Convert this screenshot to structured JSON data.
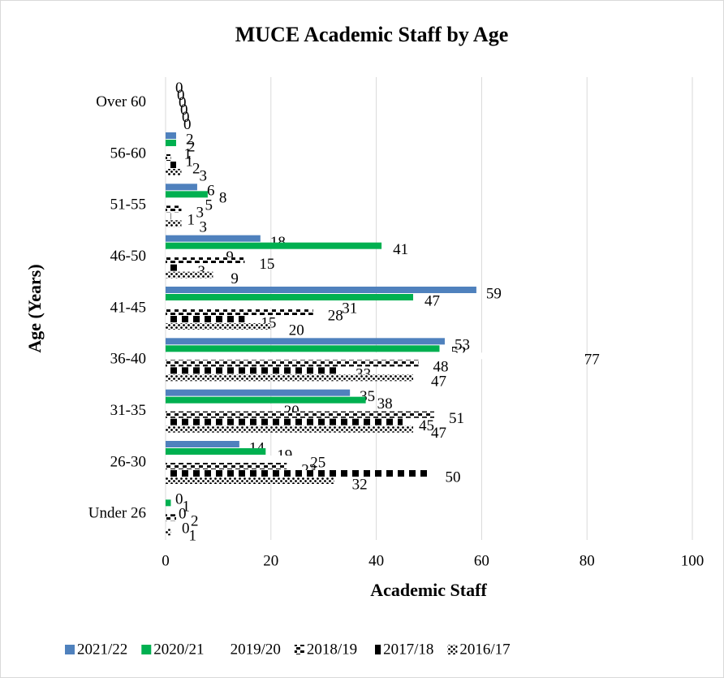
{
  "chart_data": {
    "type": "hbar",
    "title": "MUCE Academic Staff by Age",
    "xlabel": "Academic Staff",
    "ylabel": "Age (Years)",
    "categories": [
      "Under 26",
      "26-30",
      "31-35",
      "36-40",
      "41-45",
      "46-50",
      "51-55",
      "56-60",
      "Over 60"
    ],
    "series": [
      {
        "name": "2021/22",
        "color": "#4f81bd",
        "pattern": "solid",
        "values": [
          0,
          14,
          35,
          53,
          59,
          18,
          6,
          2,
          0
        ]
      },
      {
        "name": "2020/21",
        "color": "#00b050",
        "pattern": "solid",
        "values": [
          1,
          19,
          38,
          52,
          47,
          41,
          8,
          2,
          0
        ]
      },
      {
        "name": "2019/20",
        "color": "#000000",
        "pattern": "diagonal-dash",
        "values": [
          0,
          25,
          20,
          77,
          31,
          9,
          5,
          1,
          0
        ]
      },
      {
        "name": "2018/19",
        "color": "#ffc000",
        "pattern": "dash",
        "values": [
          2,
          23,
          51,
          48,
          28,
          15,
          3,
          1,
          0
        ]
      },
      {
        "name": "2017/18",
        "color": "#000000",
        "pattern": "checker",
        "values": [
          0,
          50,
          45,
          33,
          15,
          3,
          1,
          2,
          0
        ]
      },
      {
        "name": "2016/17",
        "color": "#ff0000",
        "pattern": "dots",
        "values": [
          1,
          32,
          47,
          47,
          20,
          9,
          3,
          3,
          0
        ]
      }
    ],
    "xlim": [
      0,
      100
    ],
    "xticks": [
      0,
      20,
      40,
      60,
      80,
      100
    ],
    "grid": true,
    "legend": "bottom"
  }
}
